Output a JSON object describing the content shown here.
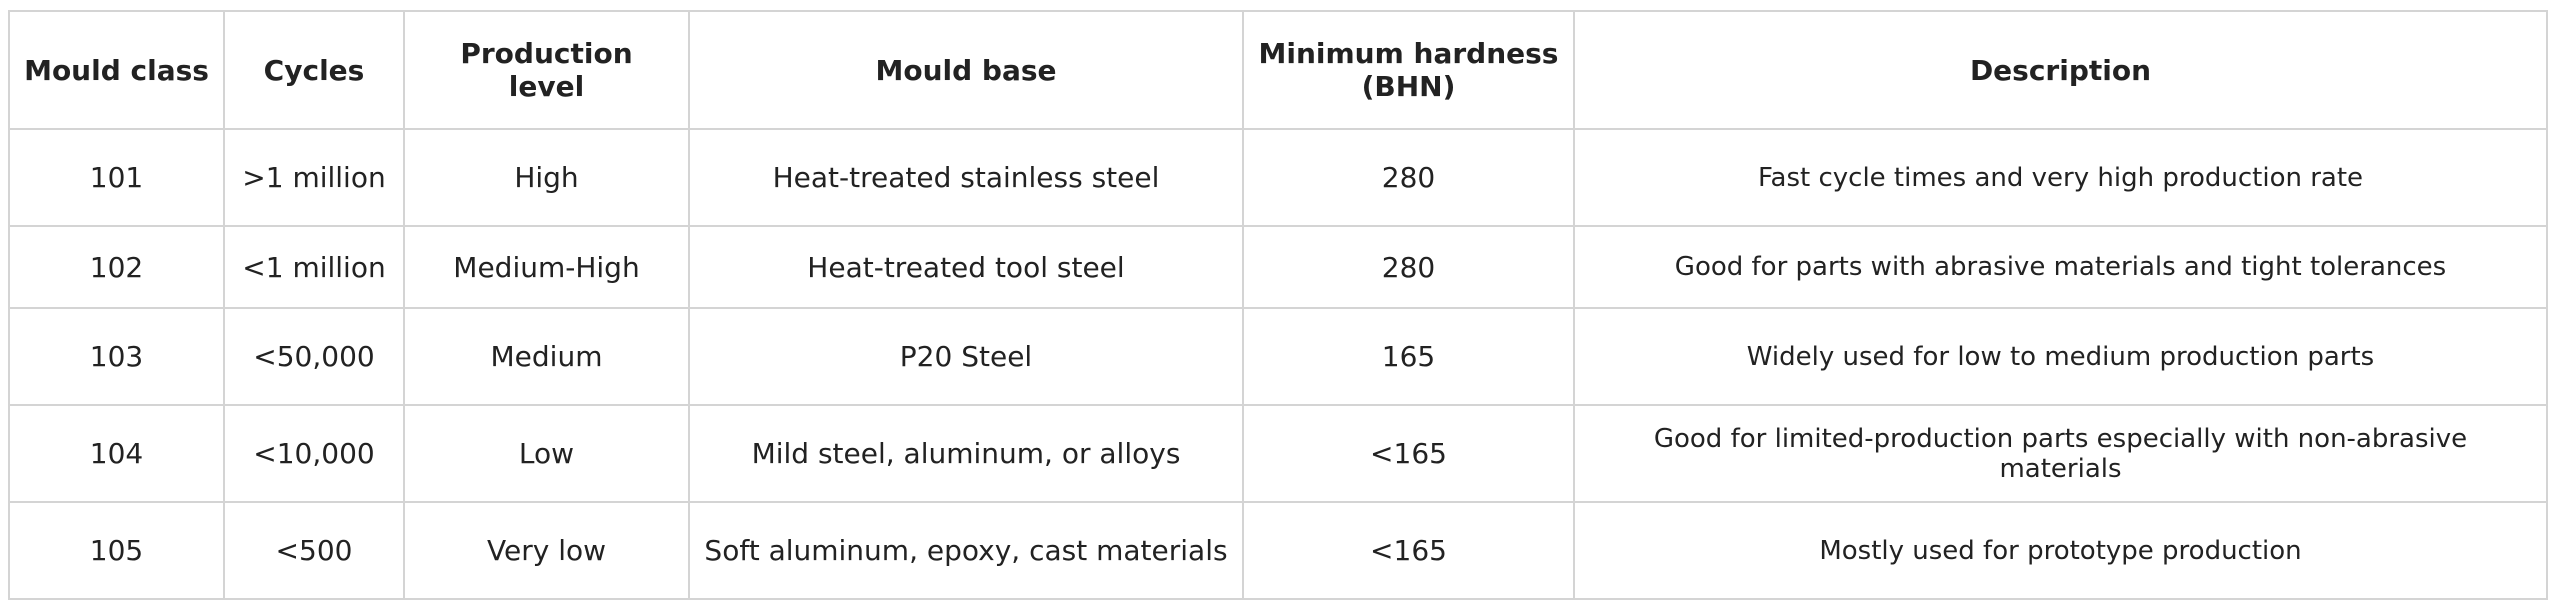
{
  "table": {
    "headers": [
      "Mould class",
      "Cycles",
      "Production level",
      "Mould base",
      "Minimum hardness (BHN)",
      "Description"
    ],
    "rows": [
      [
        "101",
        ">1 million",
        "High",
        "Heat-treated stainless steel",
        "280",
        "Fast cycle times and very high production rate"
      ],
      [
        "102",
        "<1 million",
        "Medium-High",
        "Heat-treated tool steel",
        "280",
        "Good for parts with abrasive materials and tight tolerances"
      ],
      [
        "103",
        "<50,000",
        "Medium",
        "P20 Steel",
        "165",
        "Widely used for low to medium production parts"
      ],
      [
        "104",
        "<10,000",
        "Low",
        "Mild steel, aluminum, or alloys",
        "<165",
        "Good for limited-production parts especially with non-abrasive materials"
      ],
      [
        "105",
        "<500",
        "Very low",
        "Soft aluminum, epoxy, cast materials",
        "<165",
        "Mostly used for prototype production"
      ]
    ]
  }
}
